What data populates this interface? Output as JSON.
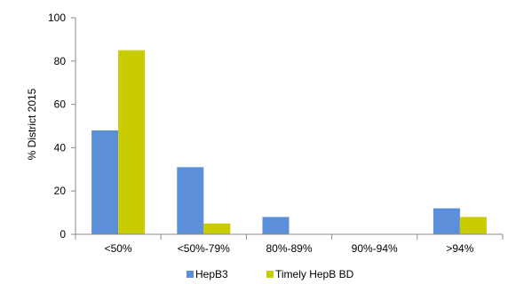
{
  "chart_data": {
    "type": "bar",
    "categories": [
      "<50%",
      "<50%-79%",
      "80%-89%",
      "90%-94%",
      ">94%"
    ],
    "series": [
      {
        "name": "HepB3",
        "values": [
          48,
          31,
          8,
          0,
          12
        ],
        "color": "#5B8FD9"
      },
      {
        "name": "Timely HepB BD",
        "values": [
          85,
          5,
          0,
          0,
          8
        ],
        "color": "#C8CC00"
      }
    ],
    "ylabel": "% District 2015",
    "xlabel": "",
    "ylim": [
      0,
      100
    ],
    "yticks": [
      0,
      20,
      40,
      60,
      80,
      100
    ],
    "grid": false,
    "legend_position": "bottom"
  }
}
